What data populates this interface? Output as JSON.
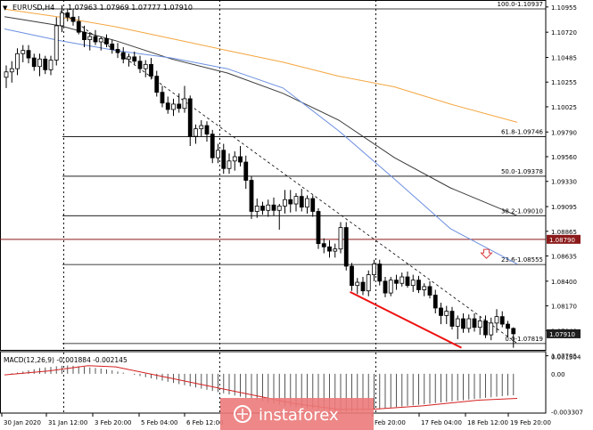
{
  "header": {
    "symbol": "EURUSD,H4",
    "ohlc": "1.07963 1.07969 1.07777 1.07910",
    "collapse_glyph": "▼"
  },
  "watermark": {
    "text": "instaforex"
  },
  "marker": {
    "icon": "down-arrow-icon",
    "color": "#d94040"
  },
  "colors": {
    "bull": "#ffffff",
    "bear": "#000000",
    "candle_outline": "#000000",
    "ma_orange": "#f4a640",
    "ma_black": "#3a3a3a",
    "ma_blue": "#6b8fe0",
    "trend_red": "#ee1111",
    "price_tag": "#1e1e1e",
    "level_tag": "#8b1a1a",
    "macd_line": "#d42020",
    "macd_hist": "#555555",
    "watermark_bg": "#ec7a7a"
  },
  "chart_data": [
    {
      "type": "candlestick",
      "title": "EURUSD,H4",
      "ylim": [
        1.0776,
        1.1102
      ],
      "y_ticks": [
        "1.10955",
        "1.10720",
        "1.10485",
        "1.10255",
        "1.10025",
        "1.09790",
        "1.09560",
        "1.09330",
        "1.09095",
        "1.08865",
        "1.08635",
        "1.08400",
        "1.08170",
        "1.07940",
        "1.07705"
      ],
      "x_ticks": [
        "30 Jan 2020",
        "31 Jan 12:00",
        "3 Feb 20:00",
        "5 Feb 04:00",
        "6 Feb 12:00",
        "",
        "Feb 20:00",
        "17 Feb 04:00",
        "18 Feb 12:00",
        "19 Feb 20:00"
      ],
      "current_price": "1.07910",
      "horizontal_level": "1.08790",
      "candles": [
        {
          "o": 1.103,
          "h": 1.1041,
          "l": 1.102,
          "c": 1.1035
        },
        {
          "o": 1.1035,
          "h": 1.1045,
          "l": 1.1025,
          "c": 1.1038
        },
        {
          "o": 1.1038,
          "h": 1.1057,
          "l": 1.1032,
          "c": 1.1052
        },
        {
          "o": 1.1052,
          "h": 1.106,
          "l": 1.1044,
          "c": 1.1055
        },
        {
          "o": 1.1055,
          "h": 1.106,
          "l": 1.1043,
          "c": 1.1048
        },
        {
          "o": 1.1048,
          "h": 1.1052,
          "l": 1.1036,
          "c": 1.104
        },
        {
          "o": 1.104,
          "h": 1.1052,
          "l": 1.1031,
          "c": 1.1047
        },
        {
          "o": 1.1047,
          "h": 1.105,
          "l": 1.1033,
          "c": 1.1037
        },
        {
          "o": 1.1037,
          "h": 1.105,
          "l": 1.1032,
          "c": 1.1046
        },
        {
          "o": 1.1046,
          "h": 1.1086,
          "l": 1.1041,
          "c": 1.1078
        },
        {
          "o": 1.1078,
          "h": 1.1097,
          "l": 1.1072,
          "c": 1.109
        },
        {
          "o": 1.109,
          "h": 1.1094,
          "l": 1.1082,
          "c": 1.1086
        },
        {
          "o": 1.1086,
          "h": 1.1093,
          "l": 1.1078,
          "c": 1.1082
        },
        {
          "o": 1.1082,
          "h": 1.1087,
          "l": 1.107,
          "c": 1.1072
        },
        {
          "o": 1.1072,
          "h": 1.1078,
          "l": 1.1058,
          "c": 1.1065
        },
        {
          "o": 1.1065,
          "h": 1.1072,
          "l": 1.1055,
          "c": 1.1068
        },
        {
          "o": 1.1068,
          "h": 1.1074,
          "l": 1.106,
          "c": 1.1063
        },
        {
          "o": 1.1063,
          "h": 1.1068,
          "l": 1.1055,
          "c": 1.1066
        },
        {
          "o": 1.1066,
          "h": 1.107,
          "l": 1.1058,
          "c": 1.1061
        },
        {
          "o": 1.1061,
          "h": 1.1065,
          "l": 1.1052,
          "c": 1.1056
        },
        {
          "o": 1.1056,
          "h": 1.1062,
          "l": 1.1048,
          "c": 1.1053
        },
        {
          "o": 1.1053,
          "h": 1.1058,
          "l": 1.1043,
          "c": 1.1047
        },
        {
          "o": 1.1047,
          "h": 1.1052,
          "l": 1.104,
          "c": 1.1049
        },
        {
          "o": 1.1049,
          "h": 1.1054,
          "l": 1.1042,
          "c": 1.1045
        },
        {
          "o": 1.1045,
          "h": 1.105,
          "l": 1.1034,
          "c": 1.1038
        },
        {
          "o": 1.1038,
          "h": 1.1046,
          "l": 1.103,
          "c": 1.1042
        },
        {
          "o": 1.1042,
          "h": 1.1048,
          "l": 1.1028,
          "c": 1.1031
        },
        {
          "o": 1.1031,
          "h": 1.1036,
          "l": 1.1012,
          "c": 1.1016
        },
        {
          "o": 1.1016,
          "h": 1.1022,
          "l": 1.1002,
          "c": 1.1006
        },
        {
          "o": 1.1006,
          "h": 1.1012,
          "l": 1.0996,
          "c": 1.1
        },
        {
          "o": 1.1,
          "h": 1.101,
          "l": 1.0994,
          "c": 1.1005
        },
        {
          "o": 1.1005,
          "h": 1.1015,
          "l": 1.0997,
          "c": 1.1001
        },
        {
          "o": 1.1001,
          "h": 1.1022,
          "l": 1.0997,
          "c": 1.101
        },
        {
          "o": 1.101,
          "h": 1.1013,
          "l": 1.0966,
          "c": 1.0975
        },
        {
          "o": 1.0975,
          "h": 1.0986,
          "l": 1.0968,
          "c": 1.0982
        },
        {
          "o": 1.0982,
          "h": 1.099,
          "l": 1.0975,
          "c": 1.0985
        },
        {
          "o": 1.0985,
          "h": 1.0989,
          "l": 1.097,
          "c": 1.0977
        },
        {
          "o": 1.0977,
          "h": 1.0981,
          "l": 1.095,
          "c": 1.0955
        },
        {
          "o": 1.0955,
          "h": 1.0968,
          "l": 1.095,
          "c": 1.0962
        },
        {
          "o": 1.0962,
          "h": 1.0968,
          "l": 1.094,
          "c": 1.0945
        },
        {
          "o": 1.0945,
          "h": 1.0959,
          "l": 1.094,
          "c": 1.0952
        },
        {
          "o": 1.0952,
          "h": 1.0961,
          "l": 1.0943,
          "c": 1.0956
        },
        {
          "o": 1.0956,
          "h": 1.0966,
          "l": 1.0947,
          "c": 1.0951
        },
        {
          "o": 1.0951,
          "h": 1.0957,
          "l": 1.0926,
          "c": 1.0934
        },
        {
          "o": 1.0934,
          "h": 1.0938,
          "l": 1.0898,
          "c": 1.0905
        },
        {
          "o": 1.0905,
          "h": 1.0917,
          "l": 1.0899,
          "c": 1.091
        },
        {
          "o": 1.091,
          "h": 1.0914,
          "l": 1.0902,
          "c": 1.0906
        },
        {
          "o": 1.0906,
          "h": 1.0916,
          "l": 1.09,
          "c": 1.0911
        },
        {
          "o": 1.0911,
          "h": 1.0918,
          "l": 1.0901,
          "c": 1.0906
        },
        {
          "o": 1.0906,
          "h": 1.0912,
          "l": 1.0888,
          "c": 1.091
        },
        {
          "o": 1.091,
          "h": 1.0925,
          "l": 1.0903,
          "c": 1.0916
        },
        {
          "o": 1.0916,
          "h": 1.0925,
          "l": 1.0904,
          "c": 1.0912
        },
        {
          "o": 1.0912,
          "h": 1.0922,
          "l": 1.0905,
          "c": 1.0919
        },
        {
          "o": 1.0919,
          "h": 1.0926,
          "l": 1.0905,
          "c": 1.0909
        },
        {
          "o": 1.0909,
          "h": 1.092,
          "l": 1.0903,
          "c": 1.0917
        },
        {
          "o": 1.0917,
          "h": 1.092,
          "l": 1.09,
          "c": 1.0905
        },
        {
          "o": 1.0905,
          "h": 1.0908,
          "l": 1.087,
          "c": 1.0875
        },
        {
          "o": 1.0875,
          "h": 1.088,
          "l": 1.0866,
          "c": 1.0872
        },
        {
          "o": 1.0872,
          "h": 1.0878,
          "l": 1.0862,
          "c": 1.0868
        },
        {
          "o": 1.0868,
          "h": 1.0875,
          "l": 1.0862,
          "c": 1.087
        },
        {
          "o": 1.087,
          "h": 1.0895,
          "l": 1.0866,
          "c": 1.089
        },
        {
          "o": 1.089,
          "h": 1.0895,
          "l": 1.085,
          "c": 1.0854
        },
        {
          "o": 1.0854,
          "h": 1.0857,
          "l": 1.0831,
          "c": 1.0836
        },
        {
          "o": 1.0836,
          "h": 1.0843,
          "l": 1.0828,
          "c": 1.0839
        },
        {
          "o": 1.0839,
          "h": 1.0844,
          "l": 1.0827,
          "c": 1.0831
        },
        {
          "o": 1.0831,
          "h": 1.085,
          "l": 1.0826,
          "c": 1.0846
        },
        {
          "o": 1.0846,
          "h": 1.086,
          "l": 1.084,
          "c": 1.0856
        },
        {
          "o": 1.0856,
          "h": 1.086,
          "l": 1.0836,
          "c": 1.084
        },
        {
          "o": 1.084,
          "h": 1.0844,
          "l": 1.0825,
          "c": 1.0829
        },
        {
          "o": 1.0829,
          "h": 1.0844,
          "l": 1.0826,
          "c": 1.0841
        },
        {
          "o": 1.0841,
          "h": 1.0846,
          "l": 1.0832,
          "c": 1.0838
        },
        {
          "o": 1.0838,
          "h": 1.0848,
          "l": 1.0835,
          "c": 1.0844
        },
        {
          "o": 1.0844,
          "h": 1.0849,
          "l": 1.0834,
          "c": 1.0836
        },
        {
          "o": 1.0836,
          "h": 1.0846,
          "l": 1.083,
          "c": 1.0841
        },
        {
          "o": 1.0841,
          "h": 1.0845,
          "l": 1.0829,
          "c": 1.0832
        },
        {
          "o": 1.0832,
          "h": 1.0838,
          "l": 1.0826,
          "c": 1.0835
        },
        {
          "o": 1.0835,
          "h": 1.084,
          "l": 1.0824,
          "c": 1.0827
        },
        {
          "o": 1.0827,
          "h": 1.0832,
          "l": 1.081,
          "c": 1.0815
        },
        {
          "o": 1.0815,
          "h": 1.082,
          "l": 1.08,
          "c": 1.0808
        },
        {
          "o": 1.0808,
          "h": 1.0817,
          "l": 1.08,
          "c": 1.0812
        },
        {
          "o": 1.0812,
          "h": 1.0816,
          "l": 1.0795,
          "c": 1.0798
        },
        {
          "o": 1.0798,
          "h": 1.0808,
          "l": 1.0786,
          "c": 1.0805
        },
        {
          "o": 1.0805,
          "h": 1.081,
          "l": 1.0792,
          "c": 1.0796
        },
        {
          "o": 1.0796,
          "h": 1.0809,
          "l": 1.0792,
          "c": 1.0805
        },
        {
          "o": 1.0805,
          "h": 1.081,
          "l": 1.0793,
          "c": 1.0797
        },
        {
          "o": 1.0797,
          "h": 1.0807,
          "l": 1.079,
          "c": 1.0803
        },
        {
          "o": 1.0803,
          "h": 1.0808,
          "l": 1.0787,
          "c": 1.079
        },
        {
          "o": 1.079,
          "h": 1.0806,
          "l": 1.0785,
          "c": 1.0801
        },
        {
          "o": 1.0801,
          "h": 1.0814,
          "l": 1.0792,
          "c": 1.0807
        },
        {
          "o": 1.0807,
          "h": 1.0812,
          "l": 1.0797,
          "c": 1.08
        },
        {
          "o": 1.08,
          "h": 1.0803,
          "l": 1.0788,
          "c": 1.0796
        },
        {
          "o": 1.0796,
          "h": 1.0797,
          "l": 1.0778,
          "c": 1.0791
        }
      ],
      "moving_averages": [
        {
          "color_key": "ma_orange",
          "points": [
            [
              0,
              1.10935
            ],
            [
              10,
              1.1086
            ],
            [
              20,
              1.1077
            ],
            [
              30,
              1.1066
            ],
            [
              40,
              1.1055
            ],
            [
              50,
              1.1044
            ],
            [
              60,
              1.1031
            ],
            [
              70,
              1.1021
            ],
            [
              80,
              1.1005
            ],
            [
              92,
              1.0988
            ]
          ]
        },
        {
          "color_key": "ma_black",
          "points": [
            [
              0,
              1.10865
            ],
            [
              10,
              1.1078
            ],
            [
              20,
              1.1064
            ],
            [
              30,
              1.1047
            ],
            [
              40,
              1.1034
            ],
            [
              50,
              1.1015
            ],
            [
              60,
              1.099
            ],
            [
              70,
              1.0955
            ],
            [
              80,
              1.0927
            ],
            [
              92,
              1.0901
            ]
          ]
        },
        {
          "color_key": "ma_blue",
          "points": [
            [
              0,
              1.1075
            ],
            [
              10,
              1.1064
            ],
            [
              20,
              1.1055
            ],
            [
              30,
              1.1048
            ],
            [
              40,
              1.1038
            ],
            [
              50,
              1.102
            ],
            [
              60,
              1.098
            ],
            [
              70,
              1.0935
            ],
            [
              80,
              1.0889
            ],
            [
              92,
              1.0856
            ]
          ]
        }
      ],
      "fib_levels": [
        {
          "label": "100.0-1.10937",
          "value": 1.10937
        },
        {
          "label": "61.8-1.09746",
          "value": 1.09746
        },
        {
          "label": "50.0-1.09378",
          "value": 1.09378
        },
        {
          "label": "38.2-1.09010",
          "value": 1.0901
        },
        {
          "label": "23.6-1.08555",
          "value": 1.08555
        },
        {
          "label": "0.0-1.07819",
          "value": 1.07819
        }
      ],
      "trend_line": [
        [
          10,
          1.1092
        ],
        [
          92,
          1.0782
        ]
      ],
      "red_support_line": [
        [
          62,
          1.083
        ],
        [
          82,
          1.0778
        ]
      ],
      "vertical_dotted_x": [
        10,
        38,
        66
      ]
    },
    {
      "type": "line",
      "title": "MACD(12,26,9) -0.001884 -0.002145",
      "ylim": [
        -0.00335,
        0.00185
      ],
      "y_ticks": [
        "0.001504",
        "0.00",
        "-0.003307"
      ],
      "histogram": [
        0.0,
        0.05,
        0.1,
        0.2,
        0.3,
        0.4,
        0.5,
        0.55,
        0.6,
        0.65,
        0.7,
        0.72,
        0.7,
        0.66,
        0.6,
        0.55,
        0.5,
        0.45,
        0.38,
        0.3,
        0.2,
        0.1,
        0.0,
        -0.1,
        -0.2,
        -0.3,
        -0.4,
        -0.5,
        -0.6,
        -0.7,
        -0.8,
        -0.9,
        -1.0,
        -1.1,
        -1.2,
        -1.3,
        -1.4,
        -1.5,
        -1.6,
        -1.7,
        -1.8,
        -1.9,
        -2.0,
        -2.1,
        -2.2,
        -2.3,
        -2.4,
        -2.5,
        -2.6,
        -2.7,
        -2.8,
        -2.85,
        -2.9,
        -2.95,
        -3.0,
        -3.05,
        -3.1,
        -3.15,
        -3.2,
        -3.25,
        -3.28,
        -3.3,
        -3.3,
        -3.25,
        -3.2,
        -3.15,
        -3.1,
        -3.05,
        -3.0,
        -2.95,
        -2.9,
        -2.85,
        -2.8,
        -2.75,
        -2.7,
        -2.65,
        -2.6,
        -2.55,
        -2.5,
        -2.45,
        -2.4,
        -2.35,
        -2.3,
        -2.25,
        -2.2,
        -2.15,
        -2.1,
        -2.05,
        -2.0,
        -1.95,
        -1.9,
        -1.88
      ],
      "signal": [
        [
          0,
          -0.1
        ],
        [
          8,
          0.25
        ],
        [
          15,
          0.7
        ],
        [
          20,
          0.6
        ],
        [
          30,
          -0.4
        ],
        [
          40,
          -1.4
        ],
        [
          52,
          -2.6
        ],
        [
          60,
          -3.1
        ],
        [
          66,
          -3.1
        ],
        [
          75,
          -2.8
        ],
        [
          85,
          -2.3
        ],
        [
          92,
          -2.15
        ]
      ],
      "hist_scale_note": "values x 0.001"
    }
  ]
}
